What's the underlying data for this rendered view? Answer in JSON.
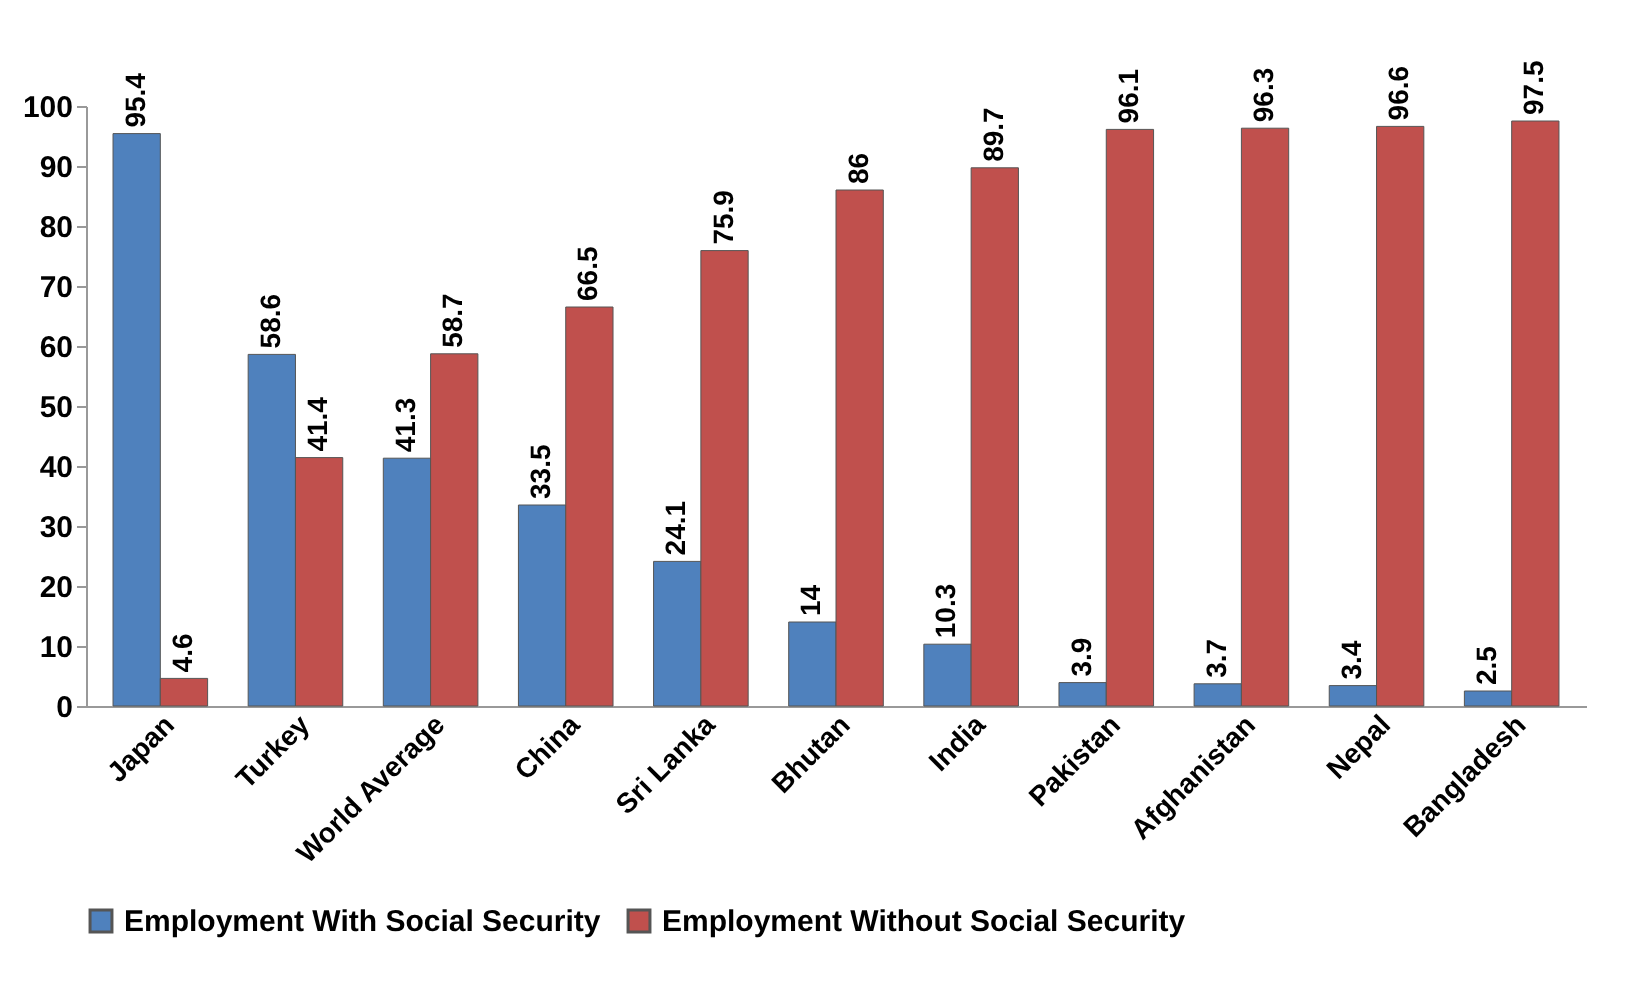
{
  "chart_data": {
    "type": "bar",
    "categories": [
      "Japan",
      "Turkey",
      "World Average",
      "China",
      "Sri Lanka",
      "Bhutan",
      "India",
      "Pakistan",
      "Afghanistan",
      "Nepal",
      "Bangladesh"
    ],
    "series": [
      {
        "name": "Employment With Social Security",
        "color": "#4f81bd",
        "values": [
          95.4,
          58.6,
          41.3,
          33.5,
          24.1,
          14,
          10.3,
          3.9,
          3.7,
          3.4,
          2.5
        ]
      },
      {
        "name": "Employment Without Social Security",
        "color": "#c0504d",
        "values": [
          4.6,
          41.4,
          58.7,
          66.5,
          75.9,
          86,
          89.7,
          96.1,
          96.3,
          96.6,
          97.5
        ]
      }
    ],
    "ylim": [
      0,
      100
    ],
    "yticks": [
      0,
      10,
      20,
      30,
      40,
      50,
      60,
      70,
      80,
      90,
      100
    ],
    "grid": false,
    "legend": "bottom",
    "data_labels": true
  }
}
